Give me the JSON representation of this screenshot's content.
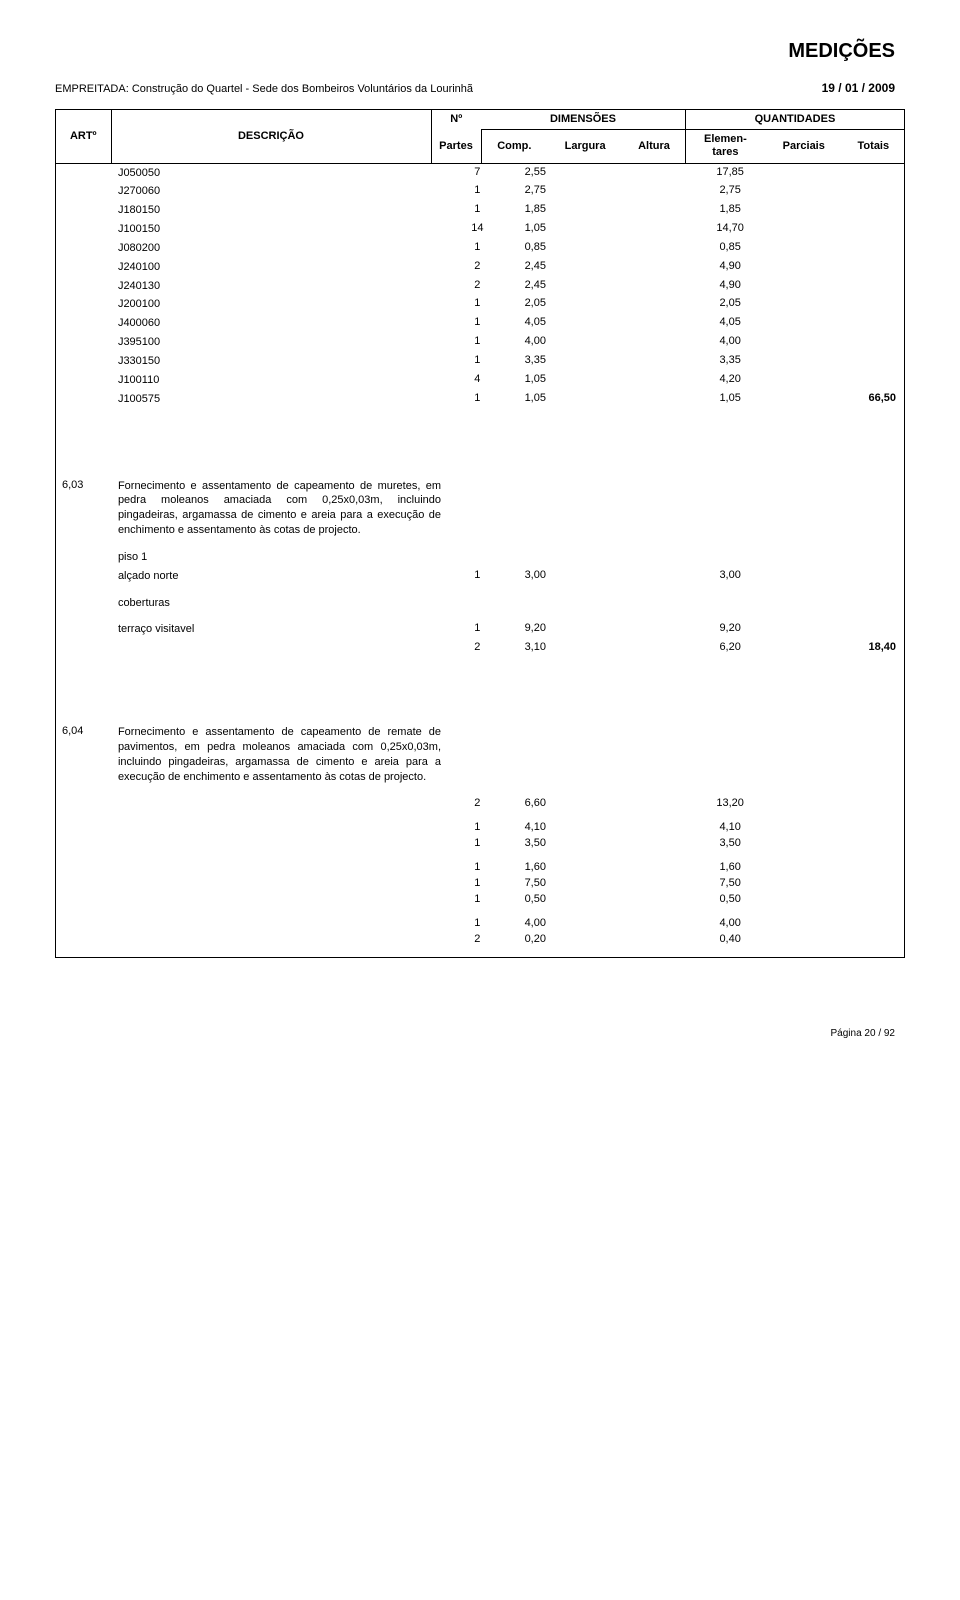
{
  "title": "MEDIÇÕES",
  "empreitada_label": "EMPREITADA:",
  "empreitada_text": "Construção do Quartel - Sede dos Bombeiros Voluntários da Lourinhã",
  "date": "19 / 01 / 2009",
  "header": {
    "artigo": "ARTº",
    "descricao": "DESCRIÇÃO",
    "num": "Nº",
    "partes": "Partes",
    "dimensoes": "DIMENSÕES",
    "comp": "Comp.",
    "largura": "Largura",
    "altura": "Altura",
    "quantidades": "QUANTIDADES",
    "elemen": "Elemen-",
    "tares": "tares",
    "parciais": "Parciais",
    "totais": "Totais"
  },
  "top_rows": [
    {
      "code": "J050050",
      "partes": "7",
      "comp": "2,55",
      "elem": "17,85"
    },
    {
      "code": "J270060",
      "partes": "1",
      "comp": "2,75",
      "elem": "2,75"
    },
    {
      "code": "J180150",
      "partes": "1",
      "comp": "1,85",
      "elem": "1,85"
    },
    {
      "code": "J100150",
      "partes": "14",
      "comp": "1,05",
      "elem": "14,70"
    },
    {
      "code": "J080200",
      "partes": "1",
      "comp": "0,85",
      "elem": "0,85"
    },
    {
      "code": "J240100",
      "partes": "2",
      "comp": "2,45",
      "elem": "4,90"
    },
    {
      "code": "J240130",
      "partes": "2",
      "comp": "2,45",
      "elem": "4,90"
    },
    {
      "code": "J200100",
      "partes": "1",
      "comp": "2,05",
      "elem": "2,05"
    },
    {
      "code": "J400060",
      "partes": "1",
      "comp": "4,05",
      "elem": "4,05"
    },
    {
      "code": "J395100",
      "partes": "1",
      "comp": "4,00",
      "elem": "4,00"
    },
    {
      "code": "J330150",
      "partes": "1",
      "comp": "3,35",
      "elem": "3,35"
    },
    {
      "code": "J100110",
      "partes": "4",
      "comp": "1,05",
      "elem": "4,20"
    },
    {
      "code": "J100575",
      "partes": "1",
      "comp": "1,05",
      "elem": "1,05",
      "tot": "66,50"
    }
  ],
  "sec603": {
    "num": "6,03",
    "desc": "Fornecimento e assentamento de capeamento de muretes, em pedra moleanos amaciada com 0,25x0,03m, incluindo pingadeiras, argamassa de cimento e areia para a execução de enchimento e assentamento às cotas de projecto.",
    "piso1": "piso 1",
    "alcado": "alçado norte",
    "alcado_row": {
      "partes": "1",
      "comp": "3,00",
      "elem": "3,00"
    },
    "coberturas": "coberturas",
    "terraco": "terraço visitavel",
    "terraco_rows": [
      {
        "partes": "1",
        "comp": "9,20",
        "elem": "9,20"
      },
      {
        "partes": "2",
        "comp": "3,10",
        "elem": "6,20",
        "tot": "18,40"
      }
    ]
  },
  "sec604": {
    "num": "6,04",
    "desc": "Fornecimento e assentamento de capeamento de remate de pavimentos, em pedra moleanos amaciada com 0,25x0,03m, incluindo pingadeiras, argamassa de cimento e areia para a execução de enchimento e  assentamento às cotas de projecto.",
    "groups": [
      [
        {
          "partes": "2",
          "comp": "6,60",
          "elem": "13,20"
        }
      ],
      [
        {
          "partes": "1",
          "comp": "4,10",
          "elem": "4,10"
        },
        {
          "partes": "1",
          "comp": "3,50",
          "elem": "3,50"
        }
      ],
      [
        {
          "partes": "1",
          "comp": "1,60",
          "elem": "1,60"
        },
        {
          "partes": "1",
          "comp": "7,50",
          "elem": "7,50"
        },
        {
          "partes": "1",
          "comp": "0,50",
          "elem": "0,50"
        }
      ],
      [
        {
          "partes": "1",
          "comp": "4,00",
          "elem": "4,00"
        },
        {
          "partes": "2",
          "comp": "0,20",
          "elem": "0,40"
        }
      ]
    ]
  },
  "footer": "Página 20 / 92"
}
